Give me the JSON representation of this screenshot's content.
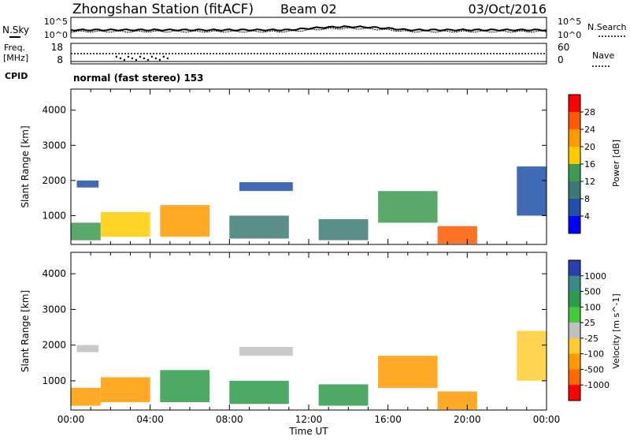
{
  "header": {
    "station": "Zhongshan Station (fitACF)",
    "beam": "Beam 02",
    "date": "03/Oct/2016"
  },
  "noise_panel": {
    "left_label": "N.Sky",
    "right_label": "N.Search",
    "left_ticks": [
      "10^5",
      "10^0"
    ],
    "right_ticks": [
      "10^5",
      "10^0"
    ]
  },
  "freq_panel": {
    "left_label_1": "Freq.",
    "left_label_2": "[MHz]",
    "right_label": "Nave",
    "left_ticks": [
      "18",
      "8"
    ],
    "right_ticks": [
      "60",
      "0"
    ]
  },
  "cpid": {
    "label": "CPID",
    "mode": "normal (fast stereo) 153"
  },
  "axes": {
    "y_label": "Slant Range [km]",
    "y_ticks": [
      "4000",
      "3000",
      "2000",
      "1000"
    ],
    "x_label": "Time UT",
    "x_ticks": [
      "00:00",
      "04:00",
      "08:00",
      "12:00",
      "16:00",
      "20:00",
      "00:00"
    ]
  },
  "power_colorbar": {
    "label": "Power [dB]",
    "ticks": [
      "28",
      "24",
      "20",
      "16",
      "12",
      "8",
      "4"
    ],
    "colors": [
      "#ff0000",
      "#ff5a00",
      "#ff9a00",
      "#ffcc00",
      "#3c9b50",
      "#3d7a76",
      "#2050a8",
      "#0000ff"
    ]
  },
  "velocity_colorbar": {
    "label": "Velocity [m s^-1]",
    "ticks": [
      "1000",
      "500",
      "100",
      "25",
      "-25",
      "-100",
      "-500",
      "-1000"
    ],
    "colors": [
      "#2a3fb0",
      "#3a8a8a",
      "#2e9b4a",
      "#46c83c",
      "#c0c0c0",
      "#ffcc33",
      "#ff9a00",
      "#ff6a00",
      "#ff0000"
    ]
  },
  "chart_data": [
    {
      "type": "heatmap",
      "title": "Power",
      "xlabel": "Time UT",
      "ylabel": "Slant Range [km]",
      "xlim": [
        "00:00",
        "24:00"
      ],
      "ylim": [
        180,
        4600
      ],
      "colorbar": {
        "label": "Power [dB]",
        "range": [
          0,
          32
        ]
      },
      "regions": [
        {
          "t_start": 0.0,
          "t_end": 1.5,
          "r_start": 300,
          "r_end": 800,
          "value_db": 14
        },
        {
          "t_start": 0.3,
          "t_end": 1.4,
          "r_start": 1800,
          "r_end": 2000,
          "value_db": 6
        },
        {
          "t_start": 1.5,
          "t_end": 4.0,
          "r_start": 400,
          "r_end": 1100,
          "value_db": 18
        },
        {
          "t_start": 4.5,
          "t_end": 7.0,
          "r_start": 400,
          "r_end": 1300,
          "value_db": 22
        },
        {
          "t_start": 8.5,
          "t_end": 11.2,
          "r_start": 1700,
          "r_end": 1950,
          "value_db": 6
        },
        {
          "t_start": 8.0,
          "t_end": 11.0,
          "r_start": 350,
          "r_end": 1000,
          "value_db": 12
        },
        {
          "t_start": 12.5,
          "t_end": 15.0,
          "r_start": 300,
          "r_end": 900,
          "value_db": 10
        },
        {
          "t_start": 15.5,
          "t_end": 18.5,
          "r_start": 800,
          "r_end": 1700,
          "value_db": 14
        },
        {
          "t_start": 18.5,
          "t_end": 20.5,
          "r_start": 200,
          "r_end": 700,
          "value_db": 28
        },
        {
          "t_start": 22.5,
          "t_end": 24.0,
          "r_start": 1000,
          "r_end": 2400,
          "value_db": 8
        }
      ]
    },
    {
      "type": "heatmap",
      "title": "Velocity",
      "xlabel": "Time UT",
      "ylabel": "Slant Range [km]",
      "xlim": [
        "00:00",
        "24:00"
      ],
      "ylim": [
        180,
        4600
      ],
      "colorbar": {
        "label": "Velocity [m s^-1]",
        "range": [
          -1000,
          1000
        ]
      },
      "regions": [
        {
          "t_start": 0.0,
          "t_end": 1.5,
          "r_start": 300,
          "r_end": 800,
          "value_ms": -300
        },
        {
          "t_start": 0.3,
          "t_end": 1.4,
          "r_start": 1800,
          "r_end": 2000,
          "value_ms": 0
        },
        {
          "t_start": 1.5,
          "t_end": 4.0,
          "r_start": 400,
          "r_end": 1100,
          "value_ms": -400
        },
        {
          "t_start": 4.5,
          "t_end": 7.0,
          "r_start": 400,
          "r_end": 1300,
          "value_ms": 300
        },
        {
          "t_start": 8.5,
          "t_end": 11.2,
          "r_start": 1700,
          "r_end": 1950,
          "value_ms": 0
        },
        {
          "t_start": 8.0,
          "t_end": 11.0,
          "r_start": 350,
          "r_end": 1000,
          "value_ms": 150
        },
        {
          "t_start": 12.5,
          "t_end": 15.0,
          "r_start": 300,
          "r_end": 900,
          "value_ms": 100
        },
        {
          "t_start": 15.5,
          "t_end": 18.5,
          "r_start": 800,
          "r_end": 1700,
          "value_ms": -500
        },
        {
          "t_start": 18.5,
          "t_end": 20.5,
          "r_start": 200,
          "r_end": 700,
          "value_ms": -200
        },
        {
          "t_start": 22.5,
          "t_end": 24.0,
          "r_start": 1000,
          "r_end": 2400,
          "value_ms": -100
        }
      ]
    }
  ]
}
